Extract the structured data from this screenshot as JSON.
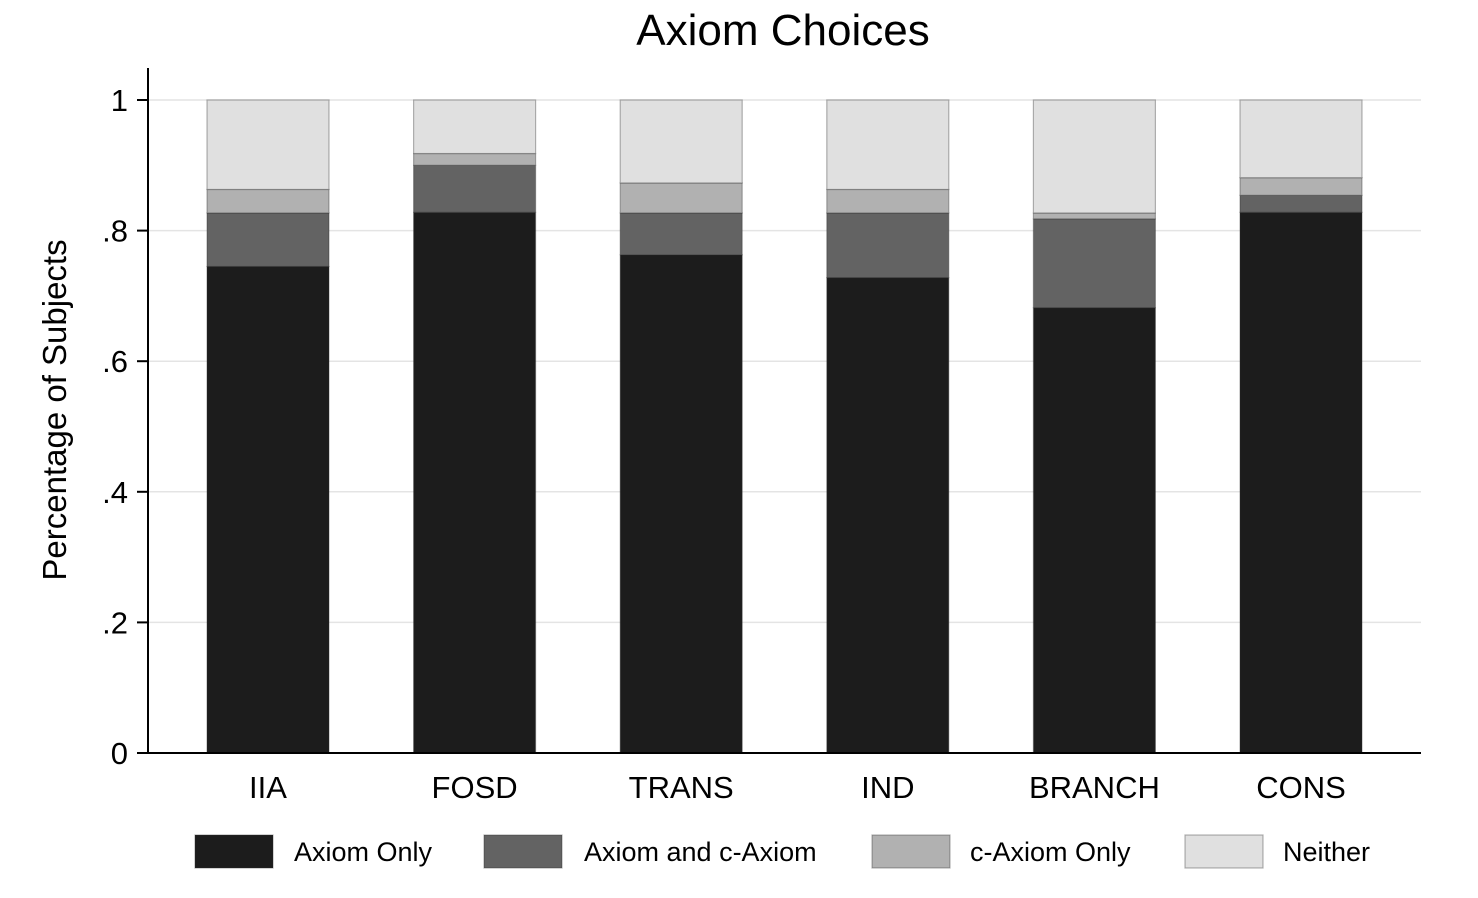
{
  "chart_data": {
    "type": "bar",
    "stacked": true,
    "title": "Axiom Choices",
    "xlabel": "",
    "ylabel": "Percentage of Subjects",
    "ylim": [
      0,
      1.05
    ],
    "yticks": [
      {
        "value": 0,
        "label": "0"
      },
      {
        "value": 0.2,
        "label": ".2"
      },
      {
        "value": 0.4,
        "label": ".4"
      },
      {
        "value": 0.6,
        "label": ".6"
      },
      {
        "value": 0.8,
        "label": ".8"
      },
      {
        "value": 1,
        "label": "1"
      }
    ],
    "grid": true,
    "legend_position": "bottom",
    "categories": [
      "IIA",
      "FOSD",
      "TRANS",
      "IND",
      "BRANCH",
      "CONS"
    ],
    "series": [
      {
        "name": "Axiom Only",
        "color": "#1c1c1c",
        "values": [
          0.745,
          0.828,
          0.763,
          0.728,
          0.682,
          0.828
        ]
      },
      {
        "name": "Axiom and c-Axiom",
        "color": "#636363",
        "values": [
          0.082,
          0.072,
          0.064,
          0.099,
          0.136,
          0.026
        ]
      },
      {
        "name": "c-Axiom Only",
        "color": "#b1b1b1",
        "values": [
          0.036,
          0.018,
          0.046,
          0.036,
          0.009,
          0.027
        ]
      },
      {
        "name": "Neither",
        "color": "#e0e0e0",
        "values": [
          0.137,
          0.082,
          0.127,
          0.137,
          0.173,
          0.119
        ]
      }
    ]
  }
}
